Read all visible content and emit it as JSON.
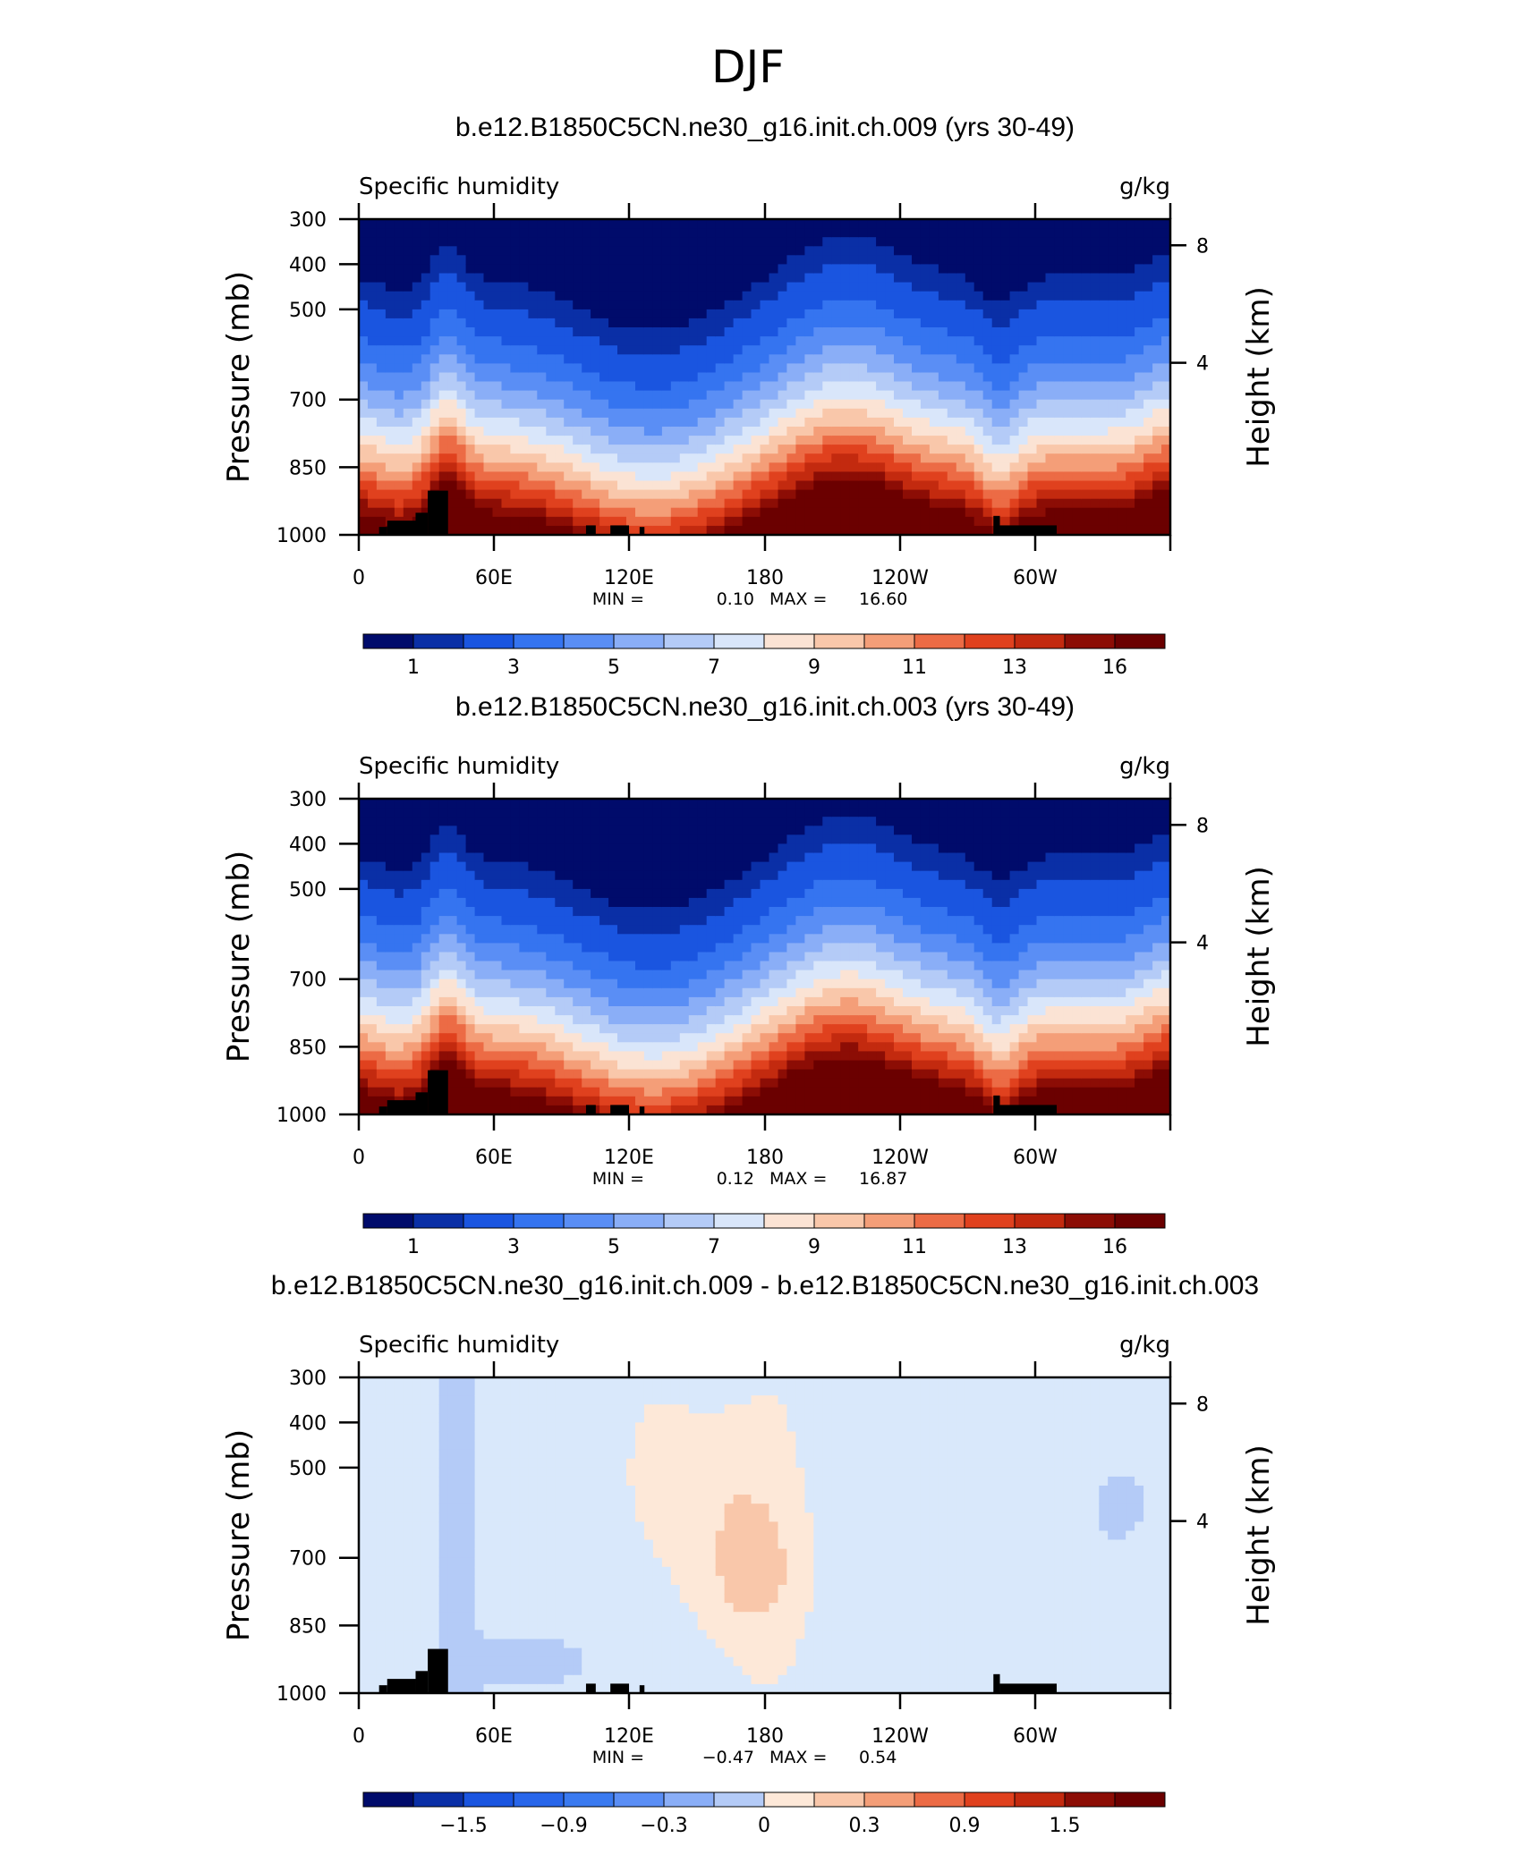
{
  "page_title": "DJF",
  "chart_data": [
    {
      "type": "heatmap",
      "title": "b.e12.B1850C5CN.ne30_g16.init.ch.009 (yrs 30-49)",
      "subtitle": "Specific humidity",
      "units": "g/kg",
      "ylabel": "Pressure (mb)",
      "ylabel_right": "Height (km)",
      "x_ticks": [
        "0",
        "60E",
        "120E",
        "180",
        "120W",
        "60W"
      ],
      "y_ticks": [
        "300",
        "400",
        "500",
        "700",
        "850",
        "1000"
      ],
      "y_ticks_right": [
        "8",
        "4"
      ],
      "min_label": "MIN =",
      "max_label": "MAX =",
      "min_value": "0.10",
      "max_value": "16.60",
      "colorbar_labels": [
        "1",
        "3",
        "5",
        "7",
        "9",
        "11",
        "13",
        "16"
      ],
      "levels": [
        0.5,
        1,
        2,
        3,
        4,
        5,
        6,
        7,
        8,
        9,
        10,
        11,
        12,
        13,
        14,
        16
      ]
    },
    {
      "type": "heatmap",
      "title": "b.e12.B1850C5CN.ne30_g16.init.ch.003 (yrs 30-49)",
      "subtitle": "Specific humidity",
      "units": "g/kg",
      "ylabel": "Pressure (mb)",
      "ylabel_right": "Height (km)",
      "x_ticks": [
        "0",
        "60E",
        "120E",
        "180",
        "120W",
        "60W"
      ],
      "y_ticks": [
        "300",
        "400",
        "500",
        "700",
        "850",
        "1000"
      ],
      "y_ticks_right": [
        "8",
        "4"
      ],
      "min_label": "MIN =",
      "max_label": "MAX =",
      "min_value": "0.12",
      "max_value": "16.87",
      "colorbar_labels": [
        "1",
        "3",
        "5",
        "7",
        "9",
        "11",
        "13",
        "16"
      ],
      "levels": [
        0.5,
        1,
        2,
        3,
        4,
        5,
        6,
        7,
        8,
        9,
        10,
        11,
        12,
        13,
        14,
        16
      ]
    },
    {
      "type": "heatmap",
      "title": "b.e12.B1850C5CN.ne30_g16.init.ch.009 - b.e12.B1850C5CN.ne30_g16.init.ch.003",
      "subtitle": "Specific humidity",
      "units": "g/kg",
      "ylabel": "Pressure (mb)",
      "ylabel_right": "Height (km)",
      "x_ticks": [
        "0",
        "60E",
        "120E",
        "180",
        "120W",
        "60W"
      ],
      "y_ticks": [
        "300",
        "400",
        "500",
        "700",
        "850",
        "1000"
      ],
      "y_ticks_right": [
        "8",
        "4"
      ],
      "min_label": "MIN =",
      "max_label": "MAX =",
      "min_value": "−0.47",
      "max_value": "0.54",
      "colorbar_labels": [
        "−1.5",
        "−0.9",
        "−0.3",
        "0",
        "0.3",
        "0.9",
        "1.5"
      ],
      "levels": [
        -1.8,
        -1.5,
        -1.2,
        -0.9,
        -0.6,
        -0.3,
        0,
        0.3,
        0.6,
        0.9,
        1.2,
        1.5,
        1.8
      ]
    }
  ],
  "palette": [
    "#000b6b",
    "#0a2fa6",
    "#1a55e0",
    "#3574f0",
    "#5a8ef5",
    "#8aaef7",
    "#b4cbf7",
    "#d9e6fa",
    "#fbe3d4",
    "#f9c7aa",
    "#f49e78",
    "#ec6b45",
    "#e0411e",
    "#c32a0f",
    "#8c0d05",
    "#6b0000"
  ],
  "diff_palette": [
    "#000b6b",
    "#0a2fa6",
    "#1a55e0",
    "#3a7af0",
    "#8aaef7",
    "#b4cbf7",
    "#d9e8fb",
    "#fde8d8",
    "#f9c7aa",
    "#f49e78",
    "#ec6b45",
    "#e0411e",
    "#c32a0f",
    "#6b0000"
  ],
  "topography_color": "#000000"
}
